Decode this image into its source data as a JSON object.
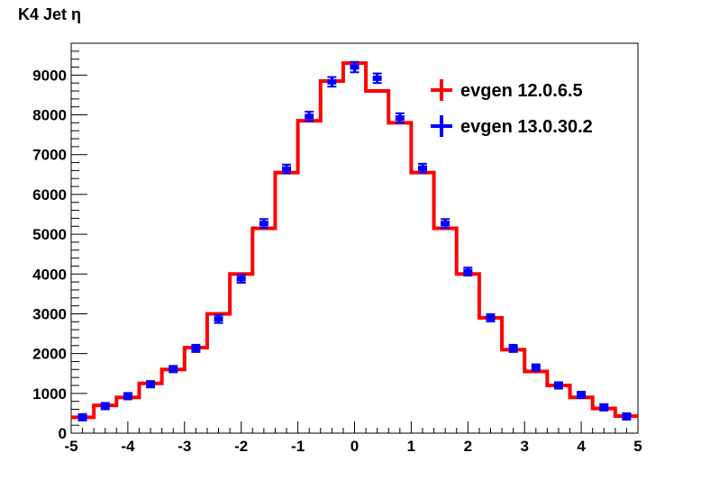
{
  "chart_data": {
    "type": "line",
    "title": "K4 Jet η",
    "xlabel": "",
    "ylabel": "",
    "xlim": [
      -5,
      5
    ],
    "ylim": [
      0,
      9800
    ],
    "grid": false,
    "legend_position": "top-right",
    "x_ticks": [
      "-5",
      "-4",
      "-3",
      "-2",
      "-1",
      "0",
      "1",
      "2",
      "3",
      "4",
      "5"
    ],
    "y_ticks": [
      "0",
      "1000",
      "2000",
      "3000",
      "4000",
      "5000",
      "6000",
      "7000",
      "8000",
      "9000"
    ],
    "bin_edges": [
      -5.0,
      -4.6,
      -4.2,
      -3.8,
      -3.4,
      -3.0,
      -2.6,
      -2.2,
      -1.8,
      -1.4,
      -1.0,
      -0.6,
      -0.2,
      0.2,
      0.6,
      1.0,
      1.4,
      1.8,
      2.2,
      2.6,
      3.0,
      3.4,
      3.8,
      4.2,
      4.6,
      5.0
    ],
    "series": [
      {
        "name": "evgen 12.0.6.5",
        "style": "histogram",
        "color": "#ff0000",
        "values": [
          400,
          700,
          900,
          1250,
          1600,
          2150,
          3000,
          4000,
          5150,
          6550,
          7850,
          8850,
          9300,
          8600,
          7800,
          6550,
          5150,
          4000,
          2900,
          2100,
          1550,
          1200,
          900,
          620,
          430
        ]
      },
      {
        "name": "evgen 13.0.30.2",
        "style": "points-with-errors",
        "color": "#0000ff",
        "values": [
          400,
          680,
          930,
          1230,
          1610,
          2130,
          2870,
          3880,
          5270,
          6640,
          7960,
          8830,
          9200,
          8920,
          7920,
          6660,
          5270,
          4060,
          2900,
          2130,
          1650,
          1200,
          960,
          650,
          420
        ],
        "errors": [
          80,
          80,
          80,
          80,
          80,
          90,
          100,
          100,
          110,
          110,
          120,
          120,
          130,
          120,
          120,
          110,
          110,
          100,
          90,
          90,
          80,
          80,
          80,
          80,
          80
        ]
      }
    ]
  }
}
